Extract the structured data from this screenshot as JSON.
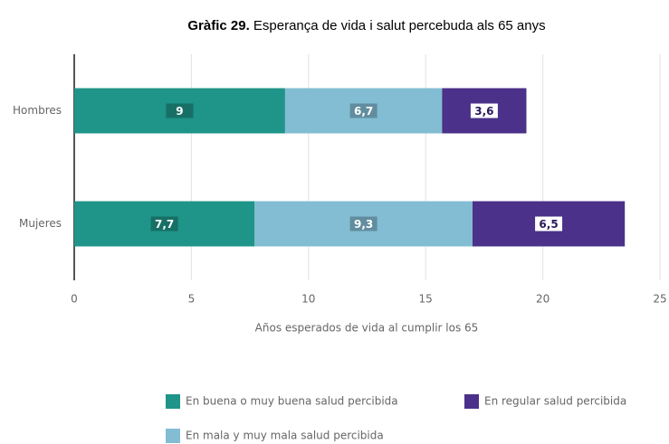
{
  "chart_data": {
    "type": "stacked_barh",
    "title_number": "Gràfic 29.",
    "title": "Esperança de vida i salut percebuda als 65 anys",
    "xlabel": "Años esperados de vida al cumplir los 65",
    "categories": [
      "Hombres",
      "Mujeres"
    ],
    "series": [
      {
        "name": "En buena o muy buena salud percibida",
        "color": "#1f9488",
        "values": [
          9,
          7.7
        ],
        "value_labels": [
          "9",
          "7,7"
        ]
      },
      {
        "name": "En mala y muy mala salud percibida",
        "color": "#82bdd3",
        "values": [
          6.7,
          9.3
        ],
        "value_labels": [
          "6,7",
          "9,3"
        ]
      },
      {
        "name": "En regular salud percibida",
        "color": "#4b3189",
        "values": [
          3.6,
          6.5
        ],
        "value_labels": [
          "3,6",
          "6,5"
        ]
      }
    ],
    "xlim": [
      0,
      25
    ],
    "xticks": [
      0,
      5,
      10,
      15,
      20,
      25
    ],
    "grid": true
  }
}
